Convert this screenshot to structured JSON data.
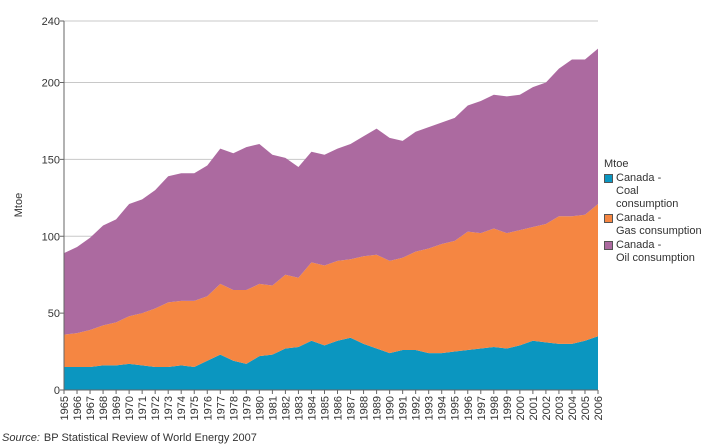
{
  "chart_data": {
    "type": "area",
    "stacked": true,
    "ylabel": "Mtoe",
    "xlabel": "",
    "ylim": [
      0,
      240
    ],
    "yticks": [
      "0",
      "50",
      "100",
      "150",
      "200",
      "240"
    ],
    "ytick_values": [
      0,
      50,
      100,
      150,
      200,
      240
    ],
    "grid": true,
    "legend_placement": "right",
    "x": [
      "1965",
      "1966",
      "1967",
      "1968",
      "1969",
      "1970",
      "1971",
      "1972",
      "1973",
      "1974",
      "1975",
      "1976",
      "1977",
      "1978",
      "1979",
      "1980",
      "1981",
      "1982",
      "1983",
      "1984",
      "1985",
      "1986",
      "1987",
      "1988",
      "1989",
      "1990",
      "1991",
      "1992",
      "1993",
      "1994",
      "1995",
      "1996",
      "1997",
      "1998",
      "1999",
      "2000",
      "2001",
      "2002",
      "2003",
      "2004",
      "2005",
      "2006"
    ],
    "series": [
      {
        "name": "Canada - Coal consumption",
        "color": "#0b96c0",
        "values": [
          15,
          15,
          15,
          16,
          16,
          17,
          16,
          15,
          15,
          16,
          15,
          19,
          23,
          19,
          17,
          22,
          23,
          27,
          28,
          32,
          29,
          32,
          34,
          30,
          27,
          24,
          26,
          26,
          24,
          24,
          25,
          26,
          27,
          28,
          27,
          29,
          32,
          31,
          30,
          30,
          32,
          35
        ]
      },
      {
        "name": "Canada - Gas consumption",
        "color": "#f58642",
        "values": [
          21,
          22,
          24,
          26,
          28,
          31,
          34,
          38,
          42,
          42,
          43,
          42,
          46,
          46,
          48,
          47,
          45,
          48,
          45,
          51,
          52,
          52,
          51,
          57,
          61,
          60,
          60,
          64,
          68,
          71,
          72,
          77,
          75,
          77,
          75,
          75,
          74,
          77,
          83,
          83,
          82,
          86
        ]
      },
      {
        "name": "Canada - Oil consumption",
        "color": "#ac6aa0",
        "values": [
          53,
          56,
          60,
          65,
          67,
          73,
          74,
          77,
          82,
          83,
          83,
          85,
          88,
          89,
          93,
          91,
          85,
          76,
          72,
          72,
          72,
          73,
          75,
          78,
          82,
          80,
          76,
          78,
          79,
          79,
          80,
          82,
          86,
          87,
          89,
          88,
          91,
          92,
          96,
          102,
          101,
          101
        ]
      }
    ]
  },
  "legend": {
    "title": "Mtoe",
    "items": [
      {
        "line1": "Canada -",
        "line2": "Coal",
        "line3": "consumption",
        "color": "#0b96c0"
      },
      {
        "line1": "Canada -",
        "line2": "Gas consumption",
        "color": "#f58642"
      },
      {
        "line1": "Canada -",
        "line2": "Oil consumption",
        "color": "#ac6aa0"
      }
    ]
  },
  "source": {
    "label": "Source:",
    "text": "BP Statistical Review of World Energy 2007"
  }
}
